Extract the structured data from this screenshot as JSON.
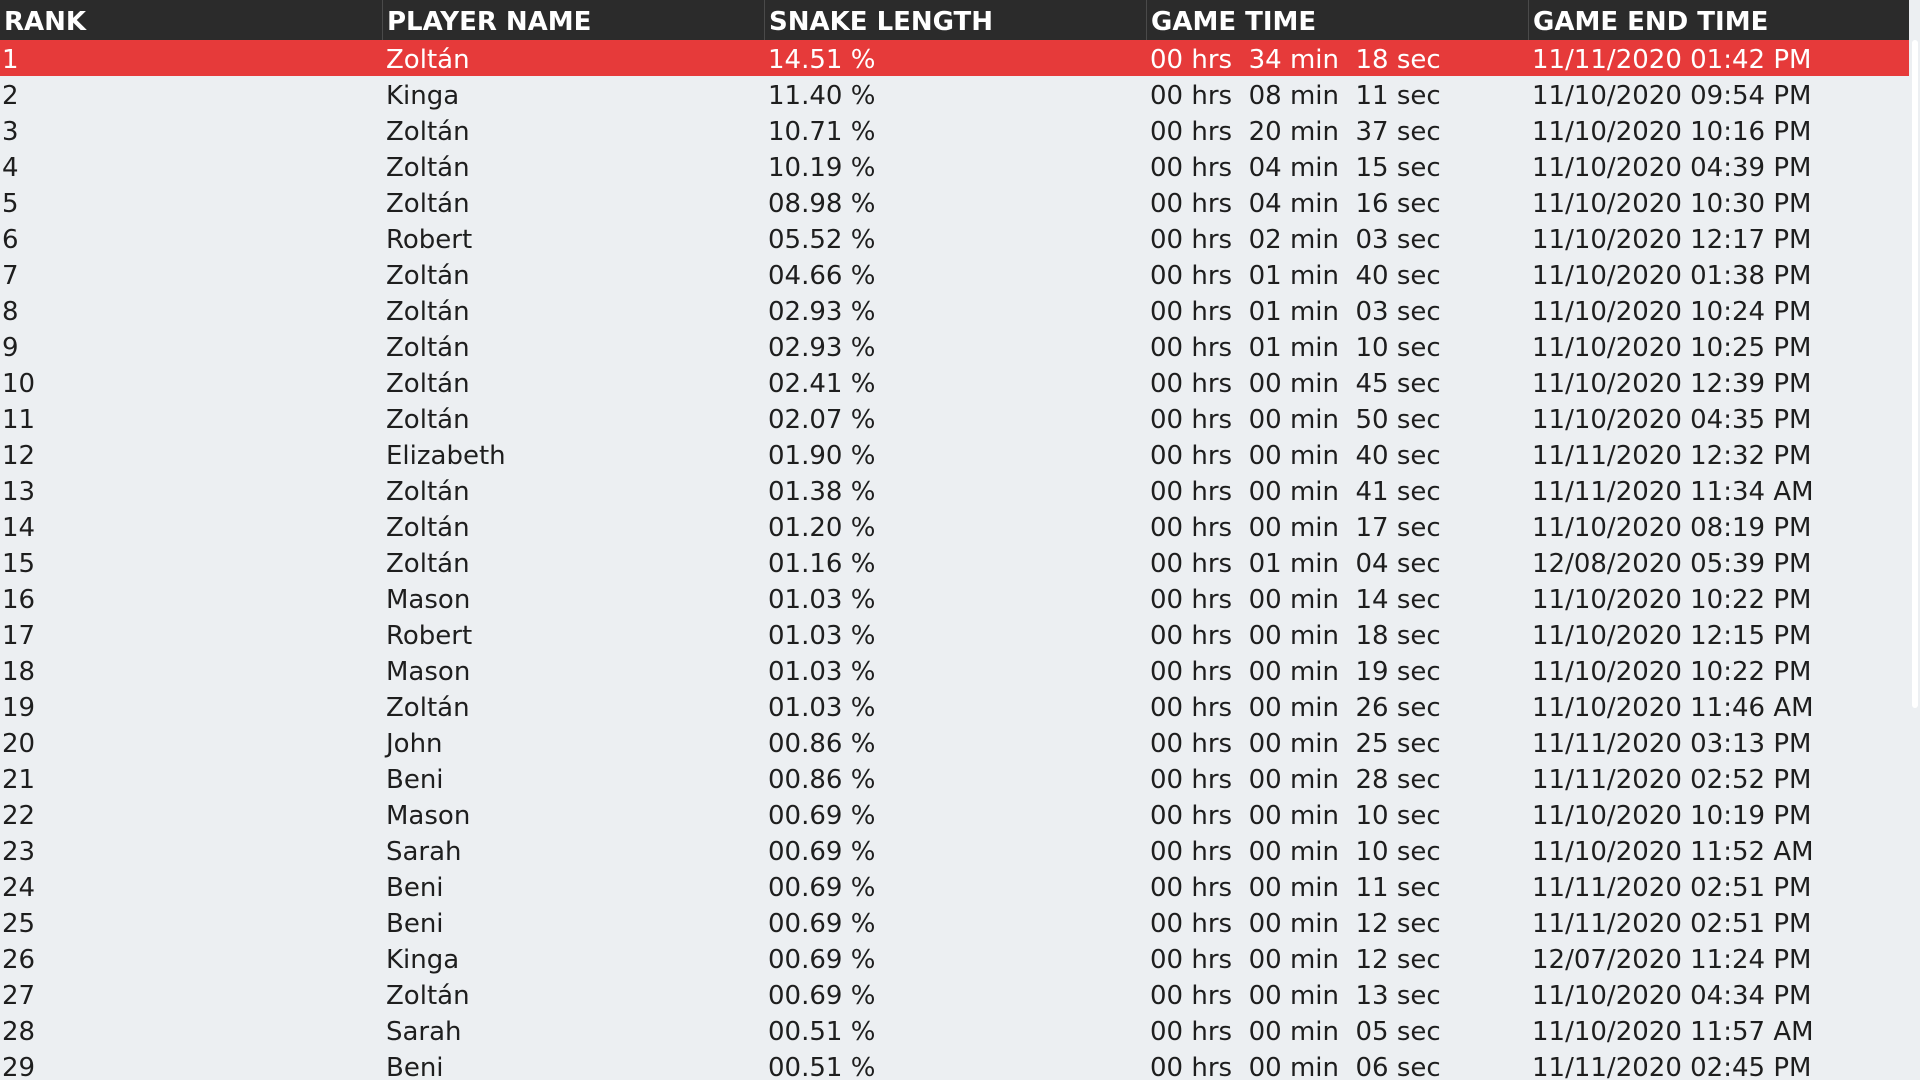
{
  "columns": [
    "RANK",
    "PLAYER NAME",
    "SNAKE LENGTH",
    "GAME TIME",
    "GAME END TIME"
  ],
  "highlight_color": "#e63a3a",
  "header_color": "#2b2b2b",
  "rows": [
    {
      "rank": "1",
      "name": "Zoltán",
      "length": "14.51 %",
      "game_time": "00 hrs  34 min  18 sec",
      "end_time": "11/11/2020 01:42 PM"
    },
    {
      "rank": "2",
      "name": "Kinga",
      "length": "11.40 %",
      "game_time": "00 hrs  08 min  11 sec",
      "end_time": "11/10/2020 09:54 PM"
    },
    {
      "rank": "3",
      "name": "Zoltán",
      "length": "10.71 %",
      "game_time": "00 hrs  20 min  37 sec",
      "end_time": "11/10/2020 10:16 PM"
    },
    {
      "rank": "4",
      "name": "Zoltán",
      "length": "10.19 %",
      "game_time": "00 hrs  04 min  15 sec",
      "end_time": "11/10/2020 04:39 PM"
    },
    {
      "rank": "5",
      "name": "Zoltán",
      "length": "08.98 %",
      "game_time": "00 hrs  04 min  16 sec",
      "end_time": "11/10/2020 10:30 PM"
    },
    {
      "rank": "6",
      "name": "Robert",
      "length": "05.52 %",
      "game_time": "00 hrs  02 min  03 sec",
      "end_time": "11/10/2020 12:17 PM"
    },
    {
      "rank": "7",
      "name": "Zoltán",
      "length": "04.66 %",
      "game_time": "00 hrs  01 min  40 sec",
      "end_time": "11/10/2020 01:38 PM"
    },
    {
      "rank": "8",
      "name": "Zoltán",
      "length": "02.93 %",
      "game_time": "00 hrs  01 min  03 sec",
      "end_time": "11/10/2020 10:24 PM"
    },
    {
      "rank": "9",
      "name": "Zoltán",
      "length": "02.93 %",
      "game_time": "00 hrs  01 min  10 sec",
      "end_time": "11/10/2020 10:25 PM"
    },
    {
      "rank": "10",
      "name": "Zoltán",
      "length": "02.41 %",
      "game_time": "00 hrs  00 min  45 sec",
      "end_time": "11/10/2020 12:39 PM"
    },
    {
      "rank": "11",
      "name": "Zoltán",
      "length": "02.07 %",
      "game_time": "00 hrs  00 min  50 sec",
      "end_time": "11/10/2020 04:35 PM"
    },
    {
      "rank": "12",
      "name": "Elizabeth",
      "length": "01.90 %",
      "game_time": "00 hrs  00 min  40 sec",
      "end_time": "11/11/2020 12:32 PM"
    },
    {
      "rank": "13",
      "name": "Zoltán",
      "length": "01.38 %",
      "game_time": "00 hrs  00 min  41 sec",
      "end_time": "11/11/2020 11:34 AM"
    },
    {
      "rank": "14",
      "name": "Zoltán",
      "length": "01.20 %",
      "game_time": "00 hrs  00 min  17 sec",
      "end_time": "11/10/2020 08:19 PM"
    },
    {
      "rank": "15",
      "name": "Zoltán",
      "length": "01.16 %",
      "game_time": "00 hrs  01 min  04 sec",
      "end_time": "12/08/2020 05:39 PM"
    },
    {
      "rank": "16",
      "name": "Mason",
      "length": "01.03 %",
      "game_time": "00 hrs  00 min  14 sec",
      "end_time": "11/10/2020 10:22 PM"
    },
    {
      "rank": "17",
      "name": "Robert",
      "length": "01.03 %",
      "game_time": "00 hrs  00 min  18 sec",
      "end_time": "11/10/2020 12:15 PM"
    },
    {
      "rank": "18",
      "name": "Mason",
      "length": "01.03 %",
      "game_time": "00 hrs  00 min  19 sec",
      "end_time": "11/10/2020 10:22 PM"
    },
    {
      "rank": "19",
      "name": "Zoltán",
      "length": "01.03 %",
      "game_time": "00 hrs  00 min  26 sec",
      "end_time": "11/10/2020 11:46 AM"
    },
    {
      "rank": "20",
      "name": "John",
      "length": "00.86 %",
      "game_time": "00 hrs  00 min  25 sec",
      "end_time": "11/11/2020 03:13 PM"
    },
    {
      "rank": "21",
      "name": "Beni",
      "length": "00.86 %",
      "game_time": "00 hrs  00 min  28 sec",
      "end_time": "11/11/2020 02:52 PM"
    },
    {
      "rank": "22",
      "name": "Mason",
      "length": "00.69 %",
      "game_time": "00 hrs  00 min  10 sec",
      "end_time": "11/10/2020 10:19 PM"
    },
    {
      "rank": "23",
      "name": "Sarah",
      "length": "00.69 %",
      "game_time": "00 hrs  00 min  10 sec",
      "end_time": "11/10/2020 11:52 AM"
    },
    {
      "rank": "24",
      "name": "Beni",
      "length": "00.69 %",
      "game_time": "00 hrs  00 min  11 sec",
      "end_time": "11/11/2020 02:51 PM"
    },
    {
      "rank": "25",
      "name": "Beni",
      "length": "00.69 %",
      "game_time": "00 hrs  00 min  12 sec",
      "end_time": "11/11/2020 02:51 PM"
    },
    {
      "rank": "26",
      "name": "Kinga",
      "length": "00.69 %",
      "game_time": "00 hrs  00 min  12 sec",
      "end_time": "12/07/2020 11:24 PM"
    },
    {
      "rank": "27",
      "name": "Zoltán",
      "length": "00.69 %",
      "game_time": "00 hrs  00 min  13 sec",
      "end_time": "11/10/2020 04:34 PM"
    },
    {
      "rank": "28",
      "name": "Sarah",
      "length": "00.51 %",
      "game_time": "00 hrs  00 min  05 sec",
      "end_time": "11/10/2020 11:57 AM"
    },
    {
      "rank": "29",
      "name": "Beni",
      "length": "00.51 %",
      "game_time": "00 hrs  00 min  06 sec",
      "end_time": "11/11/2020 02:45 PM"
    }
  ]
}
